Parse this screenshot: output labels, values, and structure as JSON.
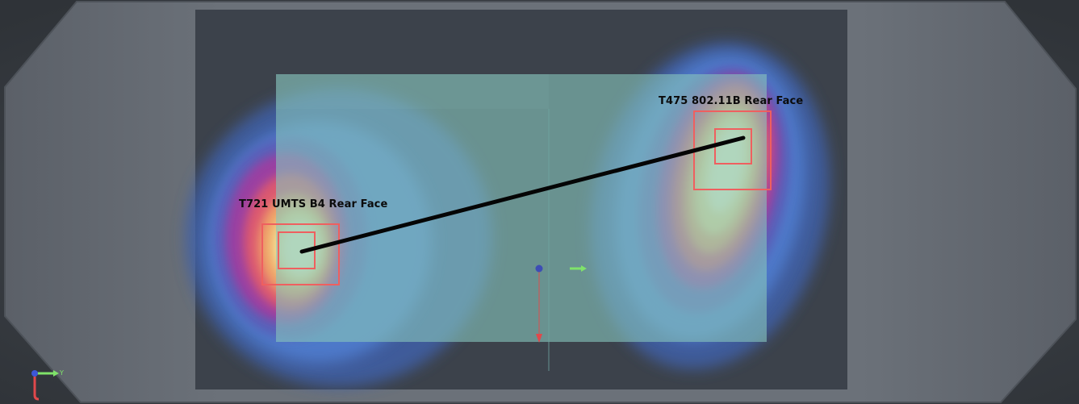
{
  "view": {
    "colors": {
      "background": "#3c4046",
      "outer_shell": "#6a7078",
      "pcb_board": "#3c424b",
      "device_panel": "#7fb6b4",
      "hotspot_low": "#4c71c9",
      "hotspot_mid": "#a63fa1",
      "hotspot_hot": "#e7616a",
      "hotspot_peak": "#f3f0b3",
      "marker_box": "#ef5f5f",
      "connector_line": "#050505"
    }
  },
  "annotations": [
    {
      "id": "left",
      "label": "T721 UMTS B4 Rear Face",
      "marker_icon": "hotspot-marker-square"
    },
    {
      "id": "right",
      "label": "T475 802.11B Rear Face",
      "marker_icon": "hotspot-marker-square"
    }
  ],
  "gizmos": {
    "axis_triad_icon": "xyz-axis-triad",
    "axis_label": "Y",
    "origin_icon": "origin-manipulator"
  }
}
